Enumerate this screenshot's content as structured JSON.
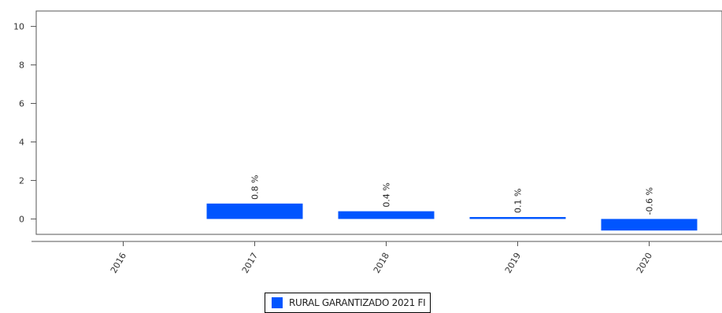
{
  "chart_data": {
    "type": "bar",
    "categories": [
      "2016",
      "2017",
      "2018",
      "2019",
      "2020"
    ],
    "series": [
      {
        "name": "RURAL GARANTIZADO 2021 FI",
        "values": [
          null,
          0.8,
          0.4,
          0.1,
          -0.6
        ],
        "color": "#0055ff"
      }
    ],
    "data_labels": [
      "",
      "0.8 %",
      "0.4 %",
      "0.1 %",
      "-0.6 %"
    ],
    "yticks": [
      "0",
      "2",
      "4",
      "6",
      "8",
      "10"
    ],
    "ylim": [
      -0.8,
      10.8
    ],
    "grid": false,
    "legend_position": "bottom-center"
  }
}
